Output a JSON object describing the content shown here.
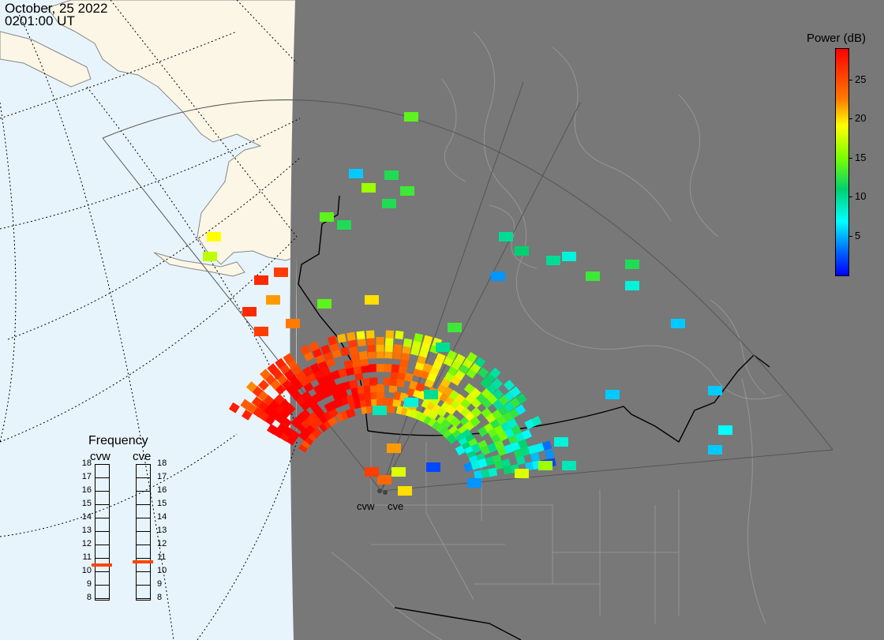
{
  "header": {
    "date": "October, 25 2022",
    "time": "0201:00 UT"
  },
  "colorbar": {
    "title": "Power (dB)",
    "ticks": [
      {
        "label": "25",
        "v": 25
      },
      {
        "label": "20",
        "v": 20
      },
      {
        "label": "15",
        "v": 15
      },
      {
        "label": "10",
        "v": 10
      },
      {
        "label": "5",
        "v": 5
      }
    ],
    "range": [
      0,
      29
    ]
  },
  "frequency": {
    "title": "Frequency",
    "radars": [
      {
        "name": "cvw",
        "freq_mhz": 10.5
      },
      {
        "name": "cve",
        "freq_mhz": 10.7
      }
    ],
    "scale": [
      "18",
      "17",
      "16",
      "15",
      "14",
      "13",
      "12",
      "11",
      "10",
      "9",
      "8"
    ],
    "marker_color": "#ff4400"
  },
  "radar_labels": [
    "cvw",
    "cve"
  ],
  "colors": {
    "ocean": "#e8f4fc",
    "land": "#fbf6e6",
    "night": "#787878",
    "gridline": "#000000"
  }
}
